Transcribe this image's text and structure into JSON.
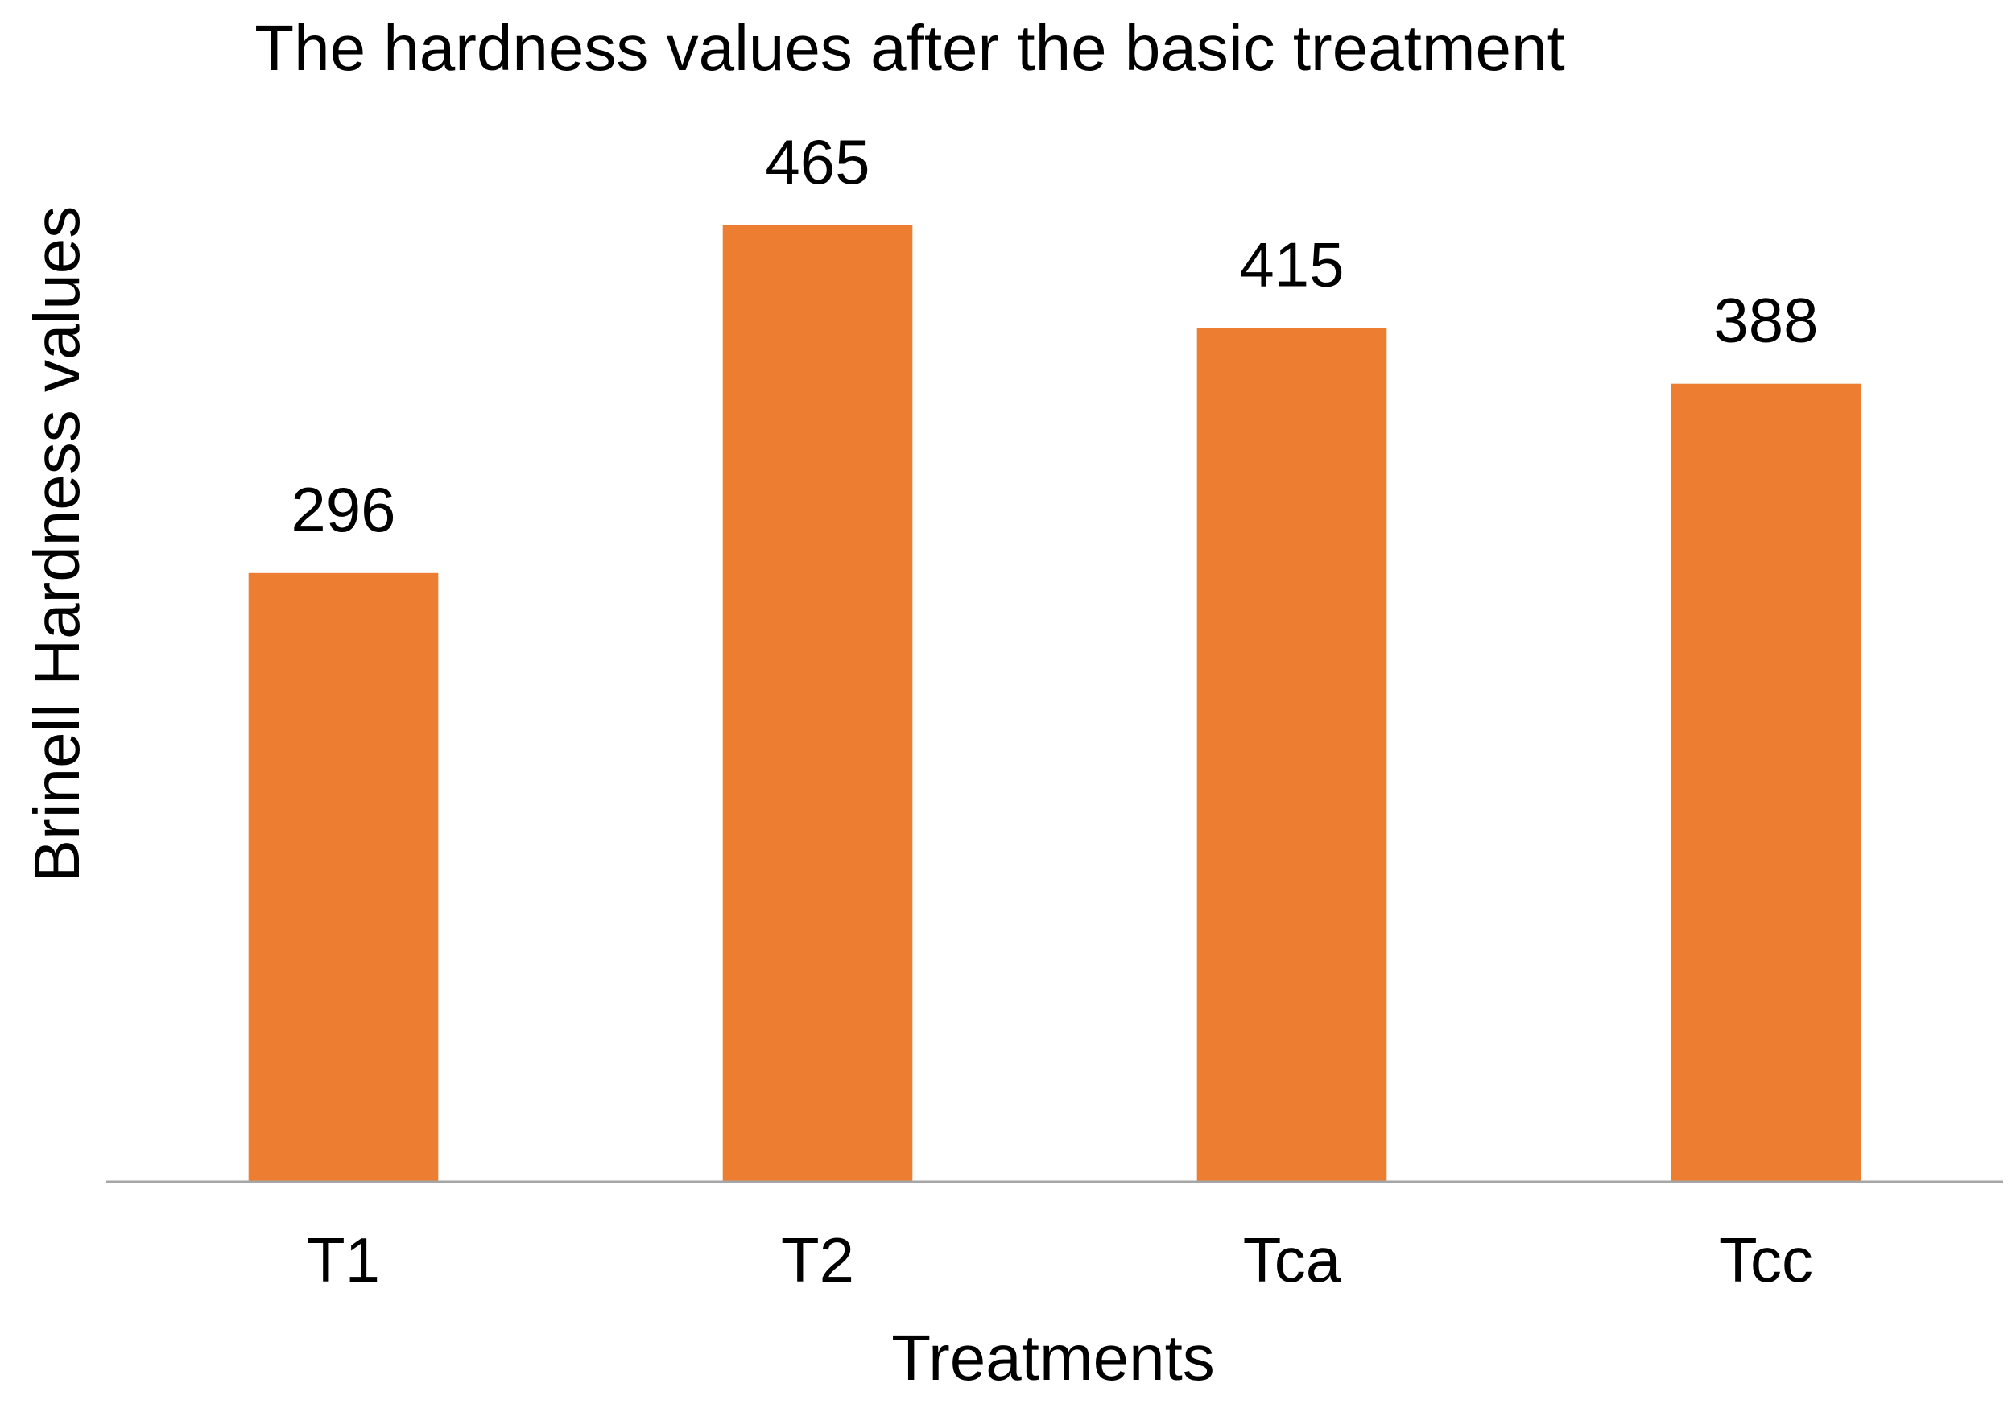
{
  "chart_data": {
    "type": "bar",
    "title": "The hardness values after the basic treatment",
    "xlabel": "Treatments",
    "ylabel": "Brinell Hardness values",
    "categories": [
      "T1",
      "T2",
      "Tca",
      "Tcc"
    ],
    "values": [
      296,
      465,
      415,
      388
    ],
    "data_labels": [
      "296",
      "465",
      "415",
      "388"
    ],
    "ylim": [
      0,
      465
    ],
    "grid": false,
    "legend": "none",
    "bar_color": "#ED7D31",
    "axis_color": "#A6A6A6"
  }
}
